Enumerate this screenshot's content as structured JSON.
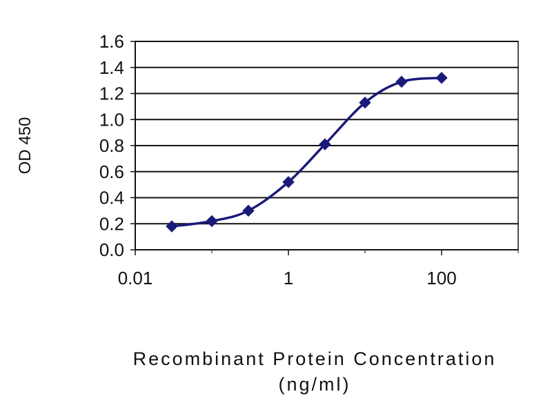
{
  "chart_data": {
    "type": "line",
    "title": "",
    "xlabel": "Recombinant Protein Concentration",
    "xlabel_unit": "(ng/ml)",
    "ylabel": "OD 450",
    "xscale": "log",
    "xlim": [
      0.01,
      1000
    ],
    "ylim": [
      0,
      1.6
    ],
    "x_ticks": [
      "0.01",
      "1",
      "100"
    ],
    "y_ticks": [
      "0.0",
      "0.2",
      "0.4",
      "0.6",
      "0.8",
      "1.0",
      "1.2",
      "1.4",
      "1.6"
    ],
    "grid": "horizontal",
    "marker": "diamond",
    "series": [
      {
        "color": "#1a1a7a",
        "x": [
          0.03,
          0.1,
          0.3,
          1,
          3,
          10,
          30,
          100
        ],
        "y": [
          0.18,
          0.22,
          0.3,
          0.52,
          0.81,
          1.13,
          1.29,
          1.32
        ]
      }
    ]
  }
}
